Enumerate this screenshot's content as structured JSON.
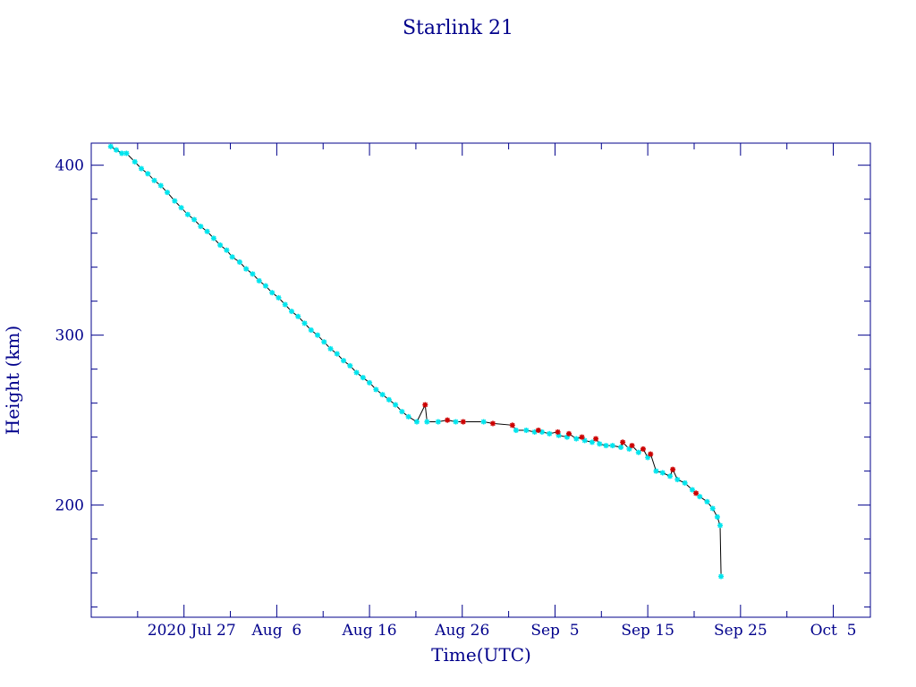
{
  "chart_data": {
    "type": "scatter",
    "title": "Starlink 21",
    "xlabel": "Time(UTC)",
    "ylabel": "Height (km)",
    "x_range_days": [
      -10,
      74
    ],
    "ylim": [
      134,
      413
    ],
    "x_ticks": [
      {
        "day": 0,
        "label": "2020 Jul 27"
      },
      {
        "day": 10,
        "label": "Aug  6"
      },
      {
        "day": 20,
        "label": "Aug 16"
      },
      {
        "day": 30,
        "label": "Aug 26"
      },
      {
        "day": 40,
        "label": "Sep  5"
      },
      {
        "day": 50,
        "label": "Sep 15"
      },
      {
        "day": 60,
        "label": "Sep 25"
      },
      {
        "day": 70,
        "label": "Oct  5"
      }
    ],
    "y_ticks": [
      200,
      300,
      400
    ],
    "colors": {
      "frame": "#00008b",
      "line": "#000000",
      "cyan_markers": "#00e5ee",
      "red_markers": "#cc0000"
    },
    "series": [
      {
        "color": "cyan",
        "x": [
          -7.9,
          -7.3,
          -6.7,
          -6.2,
          -5.3,
          -4.6,
          -3.9,
          -3.2,
          -2.5,
          -1.8,
          -1.0,
          -0.3,
          0.4,
          1.1,
          1.8,
          2.5,
          3.2,
          3.9,
          4.6,
          5.2,
          6.0,
          6.7,
          7.4,
          8.1,
          8.8,
          9.5,
          10.2,
          10.9,
          11.6,
          12.3,
          13.0,
          13.7,
          14.4,
          15.1,
          15.8,
          16.5,
          17.2,
          17.9,
          18.6,
          19.3,
          20.0,
          20.7,
          21.4,
          22.1,
          22.8,
          23.5,
          24.2,
          25.1,
          26.2,
          27.4,
          29.3,
          32.3,
          35.8,
          36.9,
          37.8,
          38.6,
          39.4,
          40.4,
          41.3,
          42.3,
          43.2,
          44.0,
          44.8,
          45.5,
          46.2,
          47.1,
          48.0,
          49.0,
          50.0,
          50.9,
          51.6,
          52.4,
          53.2,
          54.0,
          54.8,
          55.6,
          56.4,
          57.0,
          57.5,
          57.8,
          57.9
        ],
        "y": [
          411,
          409,
          407,
          407,
          402,
          398,
          395,
          391,
          388,
          384,
          379,
          375,
          371,
          368,
          364,
          361,
          357,
          353,
          350,
          346,
          343,
          339,
          336,
          332,
          329,
          325,
          322,
          318,
          314,
          311,
          307,
          303,
          300,
          296,
          292,
          289,
          285,
          282,
          278,
          275,
          272,
          268,
          265,
          262,
          259,
          255,
          252,
          249,
          249,
          249,
          249,
          249,
          244,
          244,
          243,
          243,
          242,
          241,
          240,
          239,
          238,
          237,
          236,
          235,
          235,
          234,
          233,
          231,
          228,
          220,
          219,
          217,
          215,
          213,
          209,
          205,
          202,
          198,
          193,
          188,
          158
        ]
      },
      {
        "color": "red",
        "x": [
          26.0,
          28.4,
          30.1,
          33.3,
          35.4,
          38.2,
          40.3,
          41.5,
          42.9,
          44.4,
          47.3,
          48.3,
          49.5,
          50.3,
          52.7,
          55.2
        ],
        "y": [
          259,
          250,
          249,
          248,
          247,
          244,
          243,
          242,
          240,
          239,
          237,
          235,
          233,
          230,
          221,
          207
        ]
      }
    ]
  }
}
